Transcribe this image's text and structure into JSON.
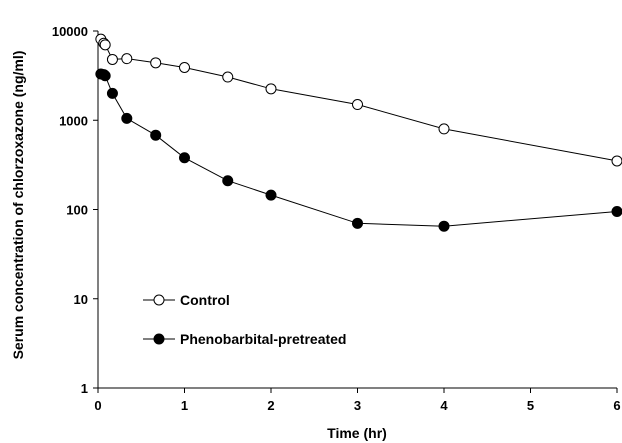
{
  "chart_data": {
    "type": "line",
    "xlabel": "Time (hr)",
    "ylabel": "Serum concentration of chlorzoxazone (ng/ml)",
    "xlim": [
      0,
      6
    ],
    "ylim": [
      1,
      10000
    ],
    "yscale": "log",
    "x_ticks": [
      0,
      1,
      2,
      3,
      4,
      5,
      6
    ],
    "x_tick_labels": [
      "0",
      "1",
      "2",
      "3",
      "4",
      "5",
      "6"
    ],
    "y_ticks": [
      1,
      10,
      100,
      1000,
      10000
    ],
    "y_tick_labels": [
      "1",
      "10",
      "100",
      "1000",
      "10000"
    ],
    "grid": false,
    "legend_position": "bottom-left",
    "series": [
      {
        "name": "Control",
        "marker": "open-circle",
        "color": "#000000",
        "x": [
          0.033,
          0.067,
          0.083,
          0.167,
          0.333,
          0.667,
          1.0,
          1.5,
          2.0,
          3.0,
          4.0,
          6.0
        ],
        "y": [
          8100,
          7300,
          7000,
          4800,
          4900,
          4400,
          3900,
          3050,
          2250,
          1500,
          800,
          350
        ]
      },
      {
        "name": "Phenobarbital-pretreated",
        "marker": "filled-circle",
        "color": "#000000",
        "x": [
          0.033,
          0.067,
          0.083,
          0.167,
          0.333,
          0.667,
          1.0,
          1.5,
          2.0,
          3.0,
          4.0,
          6.0
        ],
        "y": [
          3300,
          3250,
          3150,
          2000,
          1050,
          680,
          380,
          210,
          145,
          70,
          65,
          95
        ]
      }
    ]
  }
}
